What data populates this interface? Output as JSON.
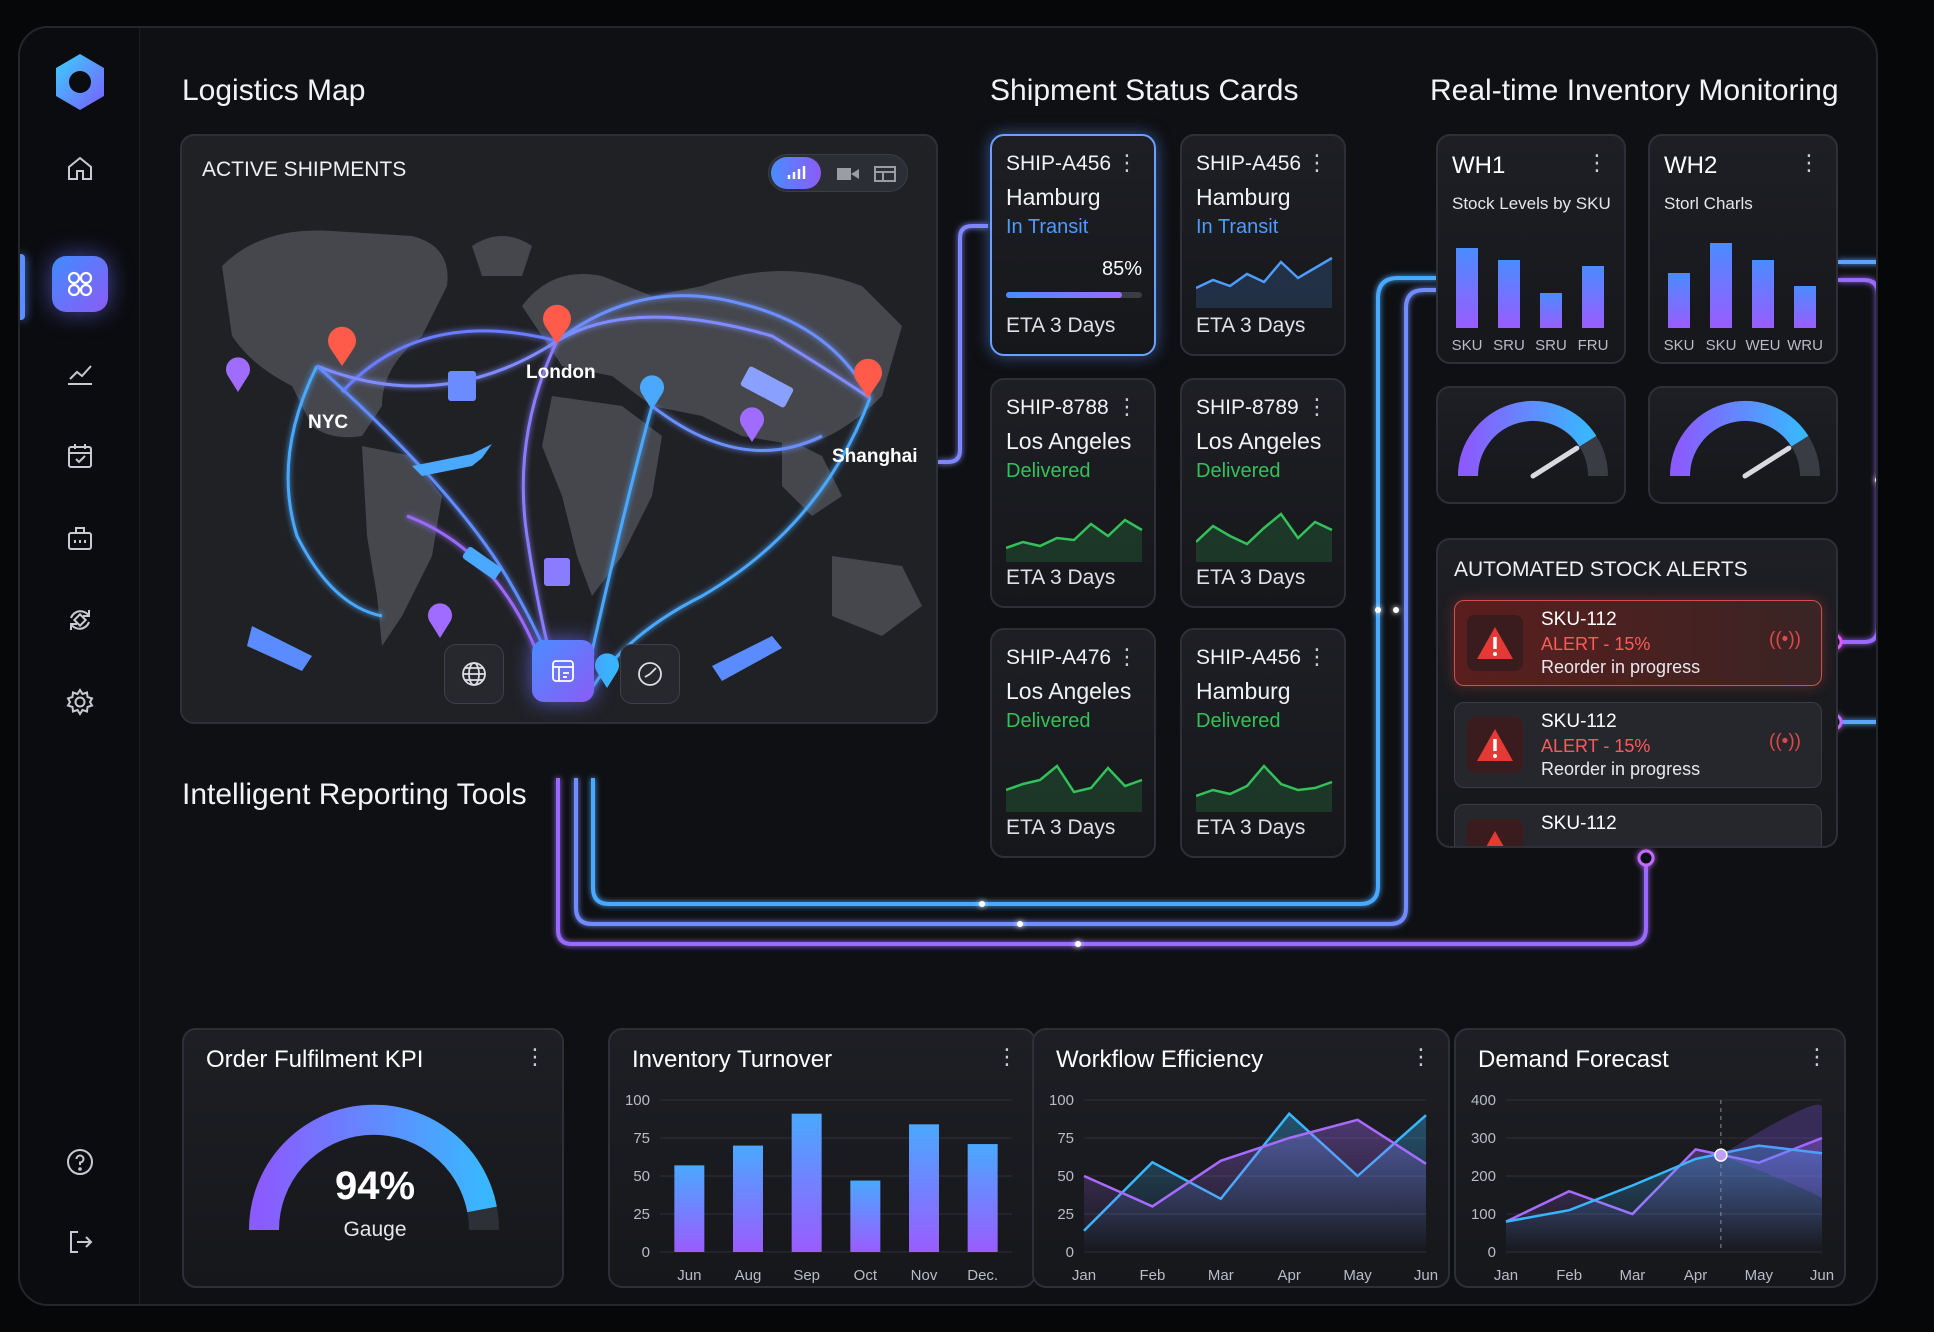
{
  "sidebar": {
    "logo": "hexagon-logo",
    "items": [
      "home-icon",
      "dashboard-icon",
      "analytics-icon",
      "calendar-icon",
      "inventory-icon",
      "sync-icon",
      "settings-icon"
    ],
    "bottom": [
      "help-icon",
      "logout-icon"
    ],
    "accent": "#5b8dff"
  },
  "map": {
    "title": "Logistics Map",
    "header": "ACTIVE SHIPMENTS",
    "cities": [
      "NYC",
      "London",
      "Shanghai"
    ],
    "toggle_icons": [
      "signal-icon",
      "video-icon",
      "layout-icon"
    ],
    "tools": [
      "globe-icon",
      "report-icon",
      "clock-icon"
    ]
  },
  "shipments": {
    "title": "Shipment Status Cards",
    "cards": [
      {
        "id": "SHIP-A456",
        "city": "Hamburg",
        "status": "In Transit",
        "progress": "85%",
        "eta": "ETA 3 Days",
        "color": "#4d9cff"
      },
      {
        "id": "SHIP-A456",
        "city": "Hamburg",
        "status": "In Transit",
        "eta": "ETA 3 Days",
        "color": "#4d9cff"
      },
      {
        "id": "SHIP-8788",
        "city": "Los Angeles",
        "status": "Delivered",
        "eta": "ETA 3 Days",
        "color": "#33c15a"
      },
      {
        "id": "SHIP-8789",
        "city": "Los Angeles",
        "status": "Delivered",
        "eta": "ETA 3 Days",
        "color": "#33c15a"
      },
      {
        "id": "SHIP-A476",
        "city": "Los Angeles",
        "status": "Delivered",
        "eta": "ETA 3 Days",
        "color": "#33c15a"
      },
      {
        "id": "SHIP-A456",
        "city": "Hamburg",
        "status": "Delivered",
        "eta": "ETA 3 Days",
        "color": "#33c15a"
      }
    ]
  },
  "inventory": {
    "title": "Real-time Inventory Monitoring",
    "wh": [
      {
        "name": "WH1",
        "subtitle": "Stock Levels by SKU",
        "labels": [
          "SKU",
          "SRU",
          "SRU",
          "FRU"
        ],
        "values": [
          80,
          68,
          35,
          62
        ],
        "gauge": 0.82
      },
      {
        "name": "WH2",
        "subtitle": "Storl Charls",
        "labels": [
          "SKU",
          "SKU",
          "WEU",
          "WRU"
        ],
        "values": [
          55,
          85,
          68,
          42
        ],
        "gauge": 0.82
      }
    ]
  },
  "alerts": {
    "title": "AUTOMATED STOCK ALERTS",
    "items": [
      {
        "sku": "SKU-112",
        "level": "ALERT - 15%",
        "msg": "Reorder in progress",
        "signal": "((•))"
      },
      {
        "sku": "SKU-112",
        "level": "ALERT - 15%",
        "msg": "Reorder in progress",
        "signal": "((•))"
      },
      {
        "sku": "SKU-112"
      }
    ]
  },
  "reporting": {
    "title": "Intelligent Reporting Tools",
    "kpi": {
      "title": "Order Fulfilment KPI",
      "value": "94%",
      "label": "Gauge",
      "fraction": 0.94
    }
  },
  "chart_data": [
    {
      "type": "bar",
      "title": "Inventory Turnover",
      "categories": [
        "Jun",
        "Aug",
        "Sep",
        "Oct",
        "Nov",
        "Dec."
      ],
      "values": [
        57,
        70,
        91,
        47,
        84,
        71
      ],
      "yticks": [
        "100",
        "75",
        "50",
        "25",
        "0"
      ],
      "ylim": [
        0,
        100
      ]
    },
    {
      "type": "line",
      "title": "Workflow Efficiency",
      "x": [
        "Jan",
        "Feb",
        "Mar",
        "Apr",
        "May",
        "Jun"
      ],
      "yticks": [
        "100",
        "75",
        "50",
        "25",
        "0"
      ],
      "ylim": [
        0,
        100
      ],
      "series": [
        {
          "values": [
            14,
            59,
            35,
            91,
            50,
            90
          ],
          "color": "#38b6ff"
        },
        {
          "values": [
            50,
            30,
            60,
            75,
            87,
            58
          ],
          "color": "#a86bff"
        }
      ]
    },
    {
      "type": "line",
      "title": "Demand Forecast",
      "x": [
        "Jan",
        "Feb",
        "Mar",
        "Apr",
        "May",
        "Jun"
      ],
      "yticks": [
        "400",
        "300",
        "200",
        "100",
        "0"
      ],
      "ylim": [
        0,
        400
      ],
      "series": [
        {
          "values": [
            80,
            160,
            100,
            270,
            235,
            300
          ],
          "color": "#a86bff"
        },
        {
          "values": [
            80,
            110,
            175,
            245,
            280,
            260
          ],
          "color": "#38b6ff"
        }
      ]
    }
  ]
}
